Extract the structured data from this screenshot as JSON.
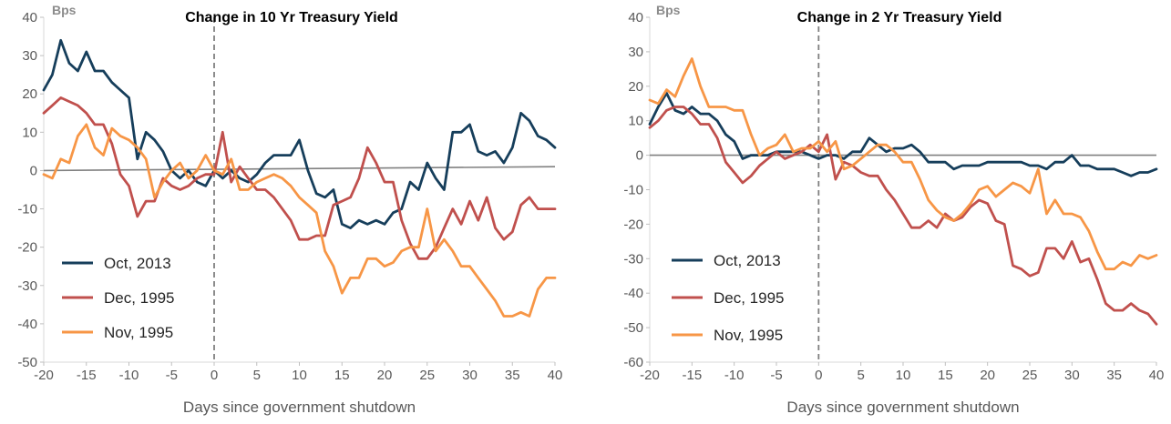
{
  "chart_data": [
    {
      "type": "line",
      "title": "Change in 10 Yr Treasury Yield",
      "unit_label": "Bps",
      "xlabel": "Days since government shutdown",
      "ylabel": "",
      "xlim": [
        -20,
        40
      ],
      "ylim": [
        -50,
        40
      ],
      "x_ticks": [
        -20,
        -15,
        -10,
        -5,
        0,
        5,
        10,
        15,
        20,
        25,
        30,
        35,
        40
      ],
      "y_ticks": [
        40,
        30,
        20,
        10,
        0,
        -10,
        -20,
        -30,
        -40,
        -50
      ],
      "grid": false,
      "legend_position": "bottom-left",
      "reference_line": {
        "name": "",
        "x": [
          -20,
          40
        ],
        "y": [
          0,
          1
        ]
      },
      "shutdown_marker_x": 0,
      "series": [
        {
          "name": "Oct, 2013",
          "color": "#163e5b",
          "x": [
            -20,
            -19,
            -18,
            -17,
            -16,
            -15,
            -14,
            -13,
            -12,
            -11,
            -10,
            -9,
            -8,
            -7,
            -6,
            -5,
            -4,
            -3,
            -2,
            -1,
            0,
            1,
            2,
            3,
            4,
            5,
            6,
            7,
            8,
            9,
            10,
            11,
            12,
            13,
            14,
            15,
            16,
            17,
            18,
            19,
            20,
            21,
            22,
            23,
            24,
            25,
            26,
            27,
            28,
            29,
            30,
            31,
            32,
            33,
            34,
            35,
            36,
            37,
            38,
            39,
            40
          ],
          "y": [
            21,
            25,
            34,
            28,
            26,
            31,
            26,
            26,
            23,
            21,
            19,
            3,
            10,
            8,
            5,
            0,
            -2,
            0,
            -3,
            -4,
            0,
            -2,
            0,
            -2,
            -3,
            -1,
            2,
            4,
            4,
            4,
            8,
            0,
            -6,
            -7,
            -5,
            -14,
            -15,
            -13,
            -14,
            -13,
            -14,
            -11,
            -10,
            -3,
            -5,
            2,
            -2,
            -5,
            10,
            10,
            12,
            5,
            4,
            5,
            2,
            6,
            15,
            13,
            9,
            8,
            6
          ]
        },
        {
          "name": "Dec, 1995",
          "color": "#c0504d",
          "x": [
            -20,
            -19,
            -18,
            -17,
            -16,
            -15,
            -14,
            -13,
            -12,
            -11,
            -10,
            -9,
            -8,
            -7,
            -6,
            -5,
            -4,
            -3,
            -2,
            -1,
            0,
            1,
            2,
            3,
            4,
            5,
            6,
            7,
            8,
            9,
            10,
            11,
            12,
            13,
            14,
            15,
            16,
            17,
            18,
            19,
            20,
            21,
            22,
            23,
            24,
            25,
            26,
            27,
            28,
            29,
            30,
            31,
            32,
            33,
            34,
            35,
            36,
            37,
            38,
            39,
            40
          ],
          "y": [
            15,
            17,
            19,
            18,
            17,
            15,
            12,
            12,
            7,
            -1,
            -4,
            -12,
            -8,
            -8,
            -2,
            -4,
            -5,
            -4,
            -2,
            -1,
            -1,
            10,
            -3,
            1,
            -2,
            -5,
            -5,
            -7,
            -10,
            -13,
            -18,
            -18,
            -17,
            -17,
            -9,
            -8,
            -7,
            -2,
            6,
            2,
            -3,
            -3,
            -13,
            -19,
            -23,
            -23,
            -20,
            -15,
            -10,
            -14,
            -8,
            -13,
            -7,
            -15,
            -18,
            -16,
            -9,
            -7,
            -10,
            -10,
            -10
          ]
        },
        {
          "name": "Nov, 1995",
          "color": "#f79646",
          "x": [
            -20,
            -19,
            -18,
            -17,
            -16,
            -15,
            -14,
            -13,
            -12,
            -11,
            -10,
            -9,
            -8,
            -7,
            -6,
            -5,
            -4,
            -3,
            -2,
            -1,
            0,
            1,
            2,
            3,
            4,
            5,
            6,
            7,
            8,
            9,
            10,
            11,
            12,
            13,
            14,
            15,
            16,
            17,
            18,
            19,
            20,
            21,
            22,
            23,
            24,
            25,
            26,
            27,
            28,
            29,
            30,
            31,
            32,
            33,
            34,
            35,
            36,
            37,
            38,
            39,
            40
          ],
          "y": [
            -1,
            -2,
            3,
            2,
            9,
            12,
            6,
            4,
            11,
            9,
            8,
            6,
            3,
            -7,
            -3,
            0,
            2,
            -2,
            0,
            4,
            0,
            -1,
            3,
            -5,
            -5,
            -3,
            -2,
            -1,
            -2,
            -4,
            -7,
            -9,
            -11,
            -21,
            -25,
            -32,
            -28,
            -28,
            -23,
            -23,
            -25,
            -24,
            -21,
            -20,
            -20,
            -10,
            -21,
            -18,
            -21,
            -25,
            -25,
            -28,
            -31,
            -34,
            -38,
            -38,
            -37,
            -38,
            -31,
            -28,
            -28
          ]
        }
      ]
    },
    {
      "type": "line",
      "title": "Change in 2 Yr Treasury Yield",
      "unit_label": "Bps",
      "xlabel": "Days since government shutdown",
      "ylabel": "",
      "xlim": [
        -20,
        40
      ],
      "ylim": [
        -60,
        40
      ],
      "x_ticks": [
        -20,
        -15,
        -10,
        -5,
        0,
        5,
        10,
        15,
        20,
        25,
        30,
        35,
        40
      ],
      "y_ticks": [
        40,
        30,
        20,
        10,
        0,
        -10,
        -20,
        -30,
        -40,
        -50,
        -60
      ],
      "grid": false,
      "legend_position": "bottom-left",
      "reference_line": {
        "name": "",
        "x": [
          -20,
          40
        ],
        "y": [
          0,
          0
        ]
      },
      "shutdown_marker_x": 0,
      "series": [
        {
          "name": "Oct, 2013",
          "color": "#163e5b",
          "x": [
            -20,
            -19,
            -18,
            -17,
            -16,
            -15,
            -14,
            -13,
            -12,
            -11,
            -10,
            -9,
            -8,
            -7,
            -6,
            -5,
            -4,
            -3,
            -2,
            -1,
            0,
            1,
            2,
            3,
            4,
            5,
            6,
            7,
            8,
            9,
            10,
            11,
            12,
            13,
            14,
            15,
            16,
            17,
            18,
            19,
            20,
            21,
            22,
            23,
            24,
            25,
            26,
            27,
            28,
            29,
            30,
            31,
            32,
            33,
            34,
            35,
            36,
            37,
            38,
            39,
            40
          ],
          "y": [
            9,
            14,
            18,
            13,
            12,
            14,
            12,
            12,
            10,
            6,
            4,
            -1,
            0,
            0,
            0,
            1,
            1,
            1,
            1,
            0,
            -1,
            0,
            0,
            -1,
            1,
            1,
            5,
            3,
            1,
            2,
            2,
            3,
            1,
            -2,
            -2,
            -2,
            -4,
            -3,
            -3,
            -3,
            -2,
            -2,
            -2,
            -2,
            -2,
            -3,
            -3,
            -4,
            -2,
            -2,
            0,
            -3,
            -3,
            -4,
            -4,
            -4,
            -5,
            -6,
            -5,
            -5,
            -4
          ]
        },
        {
          "name": "Dec, 1995",
          "color": "#c0504d",
          "x": [
            -20,
            -19,
            -18,
            -17,
            -16,
            -15,
            -14,
            -13,
            -12,
            -11,
            -10,
            -9,
            -8,
            -7,
            -6,
            -5,
            -4,
            -3,
            -2,
            -1,
            0,
            1,
            2,
            3,
            4,
            5,
            6,
            7,
            8,
            9,
            10,
            11,
            12,
            13,
            14,
            15,
            16,
            17,
            18,
            19,
            20,
            21,
            22,
            23,
            24,
            25,
            26,
            27,
            28,
            29,
            30,
            31,
            32,
            33,
            34,
            35,
            36,
            37,
            38,
            39,
            40
          ],
          "y": [
            8,
            10,
            13,
            14,
            14,
            12,
            9,
            9,
            5,
            -2,
            -5,
            -8,
            -6,
            -3,
            -1,
            1,
            -1,
            0,
            1,
            3,
            1,
            6,
            -7,
            -2,
            -3,
            -5,
            -6,
            -6,
            -10,
            -13,
            -17,
            -21,
            -21,
            -19,
            -21,
            -17,
            -19,
            -18,
            -15,
            -13,
            -14,
            -19,
            -20,
            -32,
            -33,
            -35,
            -34,
            -27,
            -27,
            -30,
            -25,
            -31,
            -30,
            -36,
            -43,
            -45,
            -45,
            -43,
            -45,
            -46,
            -49
          ]
        },
        {
          "name": "Nov, 1995",
          "color": "#f79646",
          "x": [
            -20,
            -19,
            -18,
            -17,
            -16,
            -15,
            -14,
            -13,
            -12,
            -11,
            -10,
            -9,
            -8,
            -7,
            -6,
            -5,
            -4,
            -3,
            -2,
            -1,
            0,
            1,
            2,
            3,
            4,
            5,
            6,
            7,
            8,
            9,
            10,
            11,
            12,
            13,
            14,
            15,
            16,
            17,
            18,
            19,
            20,
            21,
            22,
            23,
            24,
            25,
            26,
            27,
            28,
            29,
            30,
            31,
            32,
            33,
            34,
            35,
            36,
            37,
            38,
            39,
            40
          ],
          "y": [
            16,
            15,
            19,
            17,
            23,
            28,
            20,
            14,
            14,
            14,
            13,
            13,
            6,
            0,
            2,
            3,
            6,
            1,
            2,
            2,
            4,
            1,
            4,
            -4,
            -3,
            -1,
            1,
            3,
            3,
            1,
            -2,
            -2,
            -7,
            -13,
            -16,
            -18,
            -19,
            -17,
            -14,
            -10,
            -9,
            -12,
            -10,
            -8,
            -9,
            -11,
            -4,
            -17,
            -13,
            -17,
            -17,
            -18,
            -22,
            -28,
            -33,
            -33,
            -31,
            -32,
            -29,
            -30,
            -29
          ]
        }
      ]
    }
  ]
}
